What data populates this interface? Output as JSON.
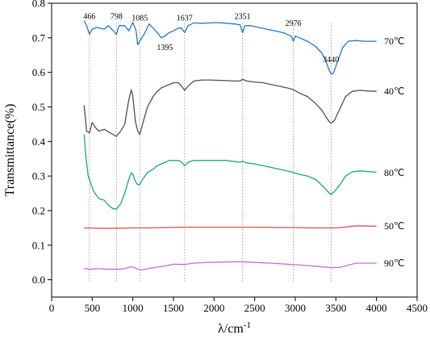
{
  "chart_data": {
    "type": "line",
    "xlabel": "λ/cm",
    "xlabel_sup": "-1",
    "ylabel": "Transmittance(%)",
    "xlim": [
      0,
      4500
    ],
    "ylim": [
      -0.05,
      0.8
    ],
    "x_ticks": [
      0,
      500,
      1000,
      1500,
      2000,
      2500,
      3000,
      3500,
      4000,
      4500
    ],
    "y_ticks": [
      0.0,
      0.1,
      0.2,
      0.3,
      0.4,
      0.5,
      0.6,
      0.7,
      0.8
    ],
    "x_tick_labels": [
      "0",
      "500",
      "1000",
      "1500",
      "2000",
      "2500",
      "3000",
      "3500",
      "4000",
      "4500"
    ],
    "y_tick_labels": [
      "0.0",
      "0.1",
      "0.2",
      "0.3",
      "0.4",
      "0.5",
      "0.6",
      "0.7",
      "0.8"
    ],
    "grid": false,
    "peak_lines": [
      466,
      798,
      1085,
      1637,
      2351,
      2976,
      3440
    ],
    "peak_annotations": [
      {
        "text": "466",
        "x": 466,
        "y": 0.755
      },
      {
        "text": "798",
        "x": 798,
        "y": 0.755
      },
      {
        "text": "1085",
        "x": 1085,
        "y": 0.75
      },
      {
        "text": "1395",
        "x": 1395,
        "y": 0.665
      },
      {
        "text": "1637",
        "x": 1637,
        "y": 0.75
      },
      {
        "text": "2351",
        "x": 2351,
        "y": 0.755
      },
      {
        "text": "2976",
        "x": 2976,
        "y": 0.735
      },
      {
        "text": "3440",
        "x": 3440,
        "y": 0.63
      }
    ],
    "series": [
      {
        "name": "70℃",
        "color": "#1f77d4",
        "label_y": 0.69,
        "x": [
          400,
          430,
          466,
          500,
          560,
          650,
          700,
          760,
          798,
          830,
          900,
          950,
          1000,
          1040,
          1060,
          1085,
          1110,
          1150,
          1200,
          1250,
          1300,
          1350,
          1395,
          1450,
          1500,
          1560,
          1600,
          1637,
          1680,
          1750,
          1850,
          1950,
          2050,
          2150,
          2250,
          2320,
          2351,
          2380,
          2450,
          2550,
          2650,
          2750,
          2850,
          2950,
          2976,
          3000,
          3050,
          3150,
          3250,
          3330,
          3380,
          3420,
          3440,
          3470,
          3520,
          3580,
          3650,
          3750,
          3850,
          3950,
          4000
        ],
        "y": [
          0.75,
          0.735,
          0.71,
          0.725,
          0.73,
          0.725,
          0.735,
          0.72,
          0.71,
          0.735,
          0.735,
          0.72,
          0.745,
          0.72,
          0.68,
          0.69,
          0.7,
          0.715,
          0.74,
          0.728,
          0.715,
          0.7,
          0.705,
          0.715,
          0.72,
          0.728,
          0.728,
          0.715,
          0.735,
          0.743,
          0.742,
          0.743,
          0.744,
          0.742,
          0.74,
          0.738,
          0.715,
          0.735,
          0.735,
          0.73,
          0.725,
          0.72,
          0.715,
          0.705,
          0.69,
          0.705,
          0.7,
          0.69,
          0.675,
          0.655,
          0.63,
          0.605,
          0.595,
          0.598,
          0.63,
          0.67,
          0.69,
          0.692,
          0.69,
          0.69,
          0.69
        ]
      },
      {
        "name": "40℃",
        "color": "#505050",
        "label_y": 0.545,
        "x": [
          400,
          430,
          466,
          500,
          540,
          580,
          650,
          720,
          798,
          850,
          900,
          950,
          980,
          1000,
          1030,
          1060,
          1085,
          1120,
          1180,
          1250,
          1300,
          1350,
          1400,
          1450,
          1500,
          1560,
          1600,
          1637,
          1680,
          1750,
          1850,
          1950,
          2050,
          2150,
          2250,
          2320,
          2351,
          2400,
          2500,
          2600,
          2700,
          2800,
          2900,
          2976,
          3050,
          3150,
          3250,
          3330,
          3380,
          3420,
          3440,
          3480,
          3550,
          3620,
          3700,
          3800,
          3900,
          4000
        ],
        "y": [
          0.505,
          0.43,
          0.425,
          0.455,
          0.44,
          0.43,
          0.435,
          0.425,
          0.415,
          0.43,
          0.45,
          0.52,
          0.55,
          0.53,
          0.46,
          0.43,
          0.42,
          0.45,
          0.5,
          0.53,
          0.545,
          0.555,
          0.56,
          0.565,
          0.57,
          0.57,
          0.56,
          0.548,
          0.56,
          0.575,
          0.578,
          0.578,
          0.577,
          0.576,
          0.575,
          0.575,
          0.58,
          0.575,
          0.572,
          0.57,
          0.565,
          0.56,
          0.555,
          0.55,
          0.54,
          0.53,
          0.51,
          0.49,
          0.47,
          0.457,
          0.453,
          0.46,
          0.495,
          0.53,
          0.545,
          0.548,
          0.546,
          0.545
        ]
      },
      {
        "name": "80℃",
        "color": "#1aa874",
        "label_y": 0.31,
        "x": [
          400,
          420,
          450,
          480,
          520,
          580,
          650,
          700,
          760,
          800,
          850,
          900,
          950,
          980,
          1000,
          1030,
          1060,
          1085,
          1120,
          1180,
          1250,
          1300,
          1350,
          1400,
          1450,
          1500,
          1560,
          1600,
          1637,
          1680,
          1750,
          1850,
          1950,
          2050,
          2150,
          2250,
          2320,
          2351,
          2400,
          2500,
          2600,
          2700,
          2800,
          2900,
          2976,
          3050,
          3150,
          3250,
          3320,
          3380,
          3420,
          3440,
          3480,
          3550,
          3620,
          3700,
          3800,
          3900,
          4000
        ],
        "y": [
          0.42,
          0.36,
          0.3,
          0.28,
          0.255,
          0.235,
          0.23,
          0.215,
          0.205,
          0.205,
          0.22,
          0.25,
          0.29,
          0.31,
          0.305,
          0.285,
          0.275,
          0.275,
          0.29,
          0.31,
          0.32,
          0.33,
          0.335,
          0.34,
          0.345,
          0.345,
          0.345,
          0.34,
          0.33,
          0.34,
          0.345,
          0.345,
          0.345,
          0.345,
          0.345,
          0.342,
          0.34,
          0.343,
          0.338,
          0.335,
          0.33,
          0.325,
          0.32,
          0.315,
          0.31,
          0.305,
          0.3,
          0.29,
          0.275,
          0.26,
          0.25,
          0.247,
          0.255,
          0.275,
          0.3,
          0.312,
          0.315,
          0.313,
          0.311
        ]
      },
      {
        "name": "50℃",
        "color": "#e05050",
        "label_y": 0.155,
        "x": [
          400,
          600,
          800,
          1000,
          1200,
          1400,
          1600,
          1800,
          2000,
          2200,
          2400,
          2600,
          2800,
          3000,
          3200,
          3400,
          3500,
          3600,
          3700,
          3800,
          3900,
          4000
        ],
        "y": [
          0.15,
          0.149,
          0.149,
          0.15,
          0.15,
          0.151,
          0.152,
          0.152,
          0.152,
          0.152,
          0.152,
          0.152,
          0.151,
          0.151,
          0.15,
          0.15,
          0.15,
          0.152,
          0.155,
          0.156,
          0.155,
          0.155
        ]
      },
      {
        "name": "90℃",
        "color": "#c070d0",
        "label_y": 0.048,
        "x": [
          400,
          466,
          550,
          650,
          798,
          900,
          980,
          1050,
          1085,
          1150,
          1250,
          1400,
          1500,
          1637,
          1750,
          1900,
          2100,
          2300,
          2351,
          2500,
          2700,
          2900,
          3100,
          3300,
          3440,
          3550,
          3650,
          3750,
          3850,
          4000
        ],
        "y": [
          0.033,
          0.03,
          0.032,
          0.031,
          0.03,
          0.032,
          0.038,
          0.032,
          0.028,
          0.03,
          0.035,
          0.04,
          0.045,
          0.044,
          0.048,
          0.05,
          0.051,
          0.052,
          0.052,
          0.05,
          0.048,
          0.045,
          0.042,
          0.038,
          0.035,
          0.036,
          0.042,
          0.048,
          0.048,
          0.048
        ]
      }
    ]
  }
}
